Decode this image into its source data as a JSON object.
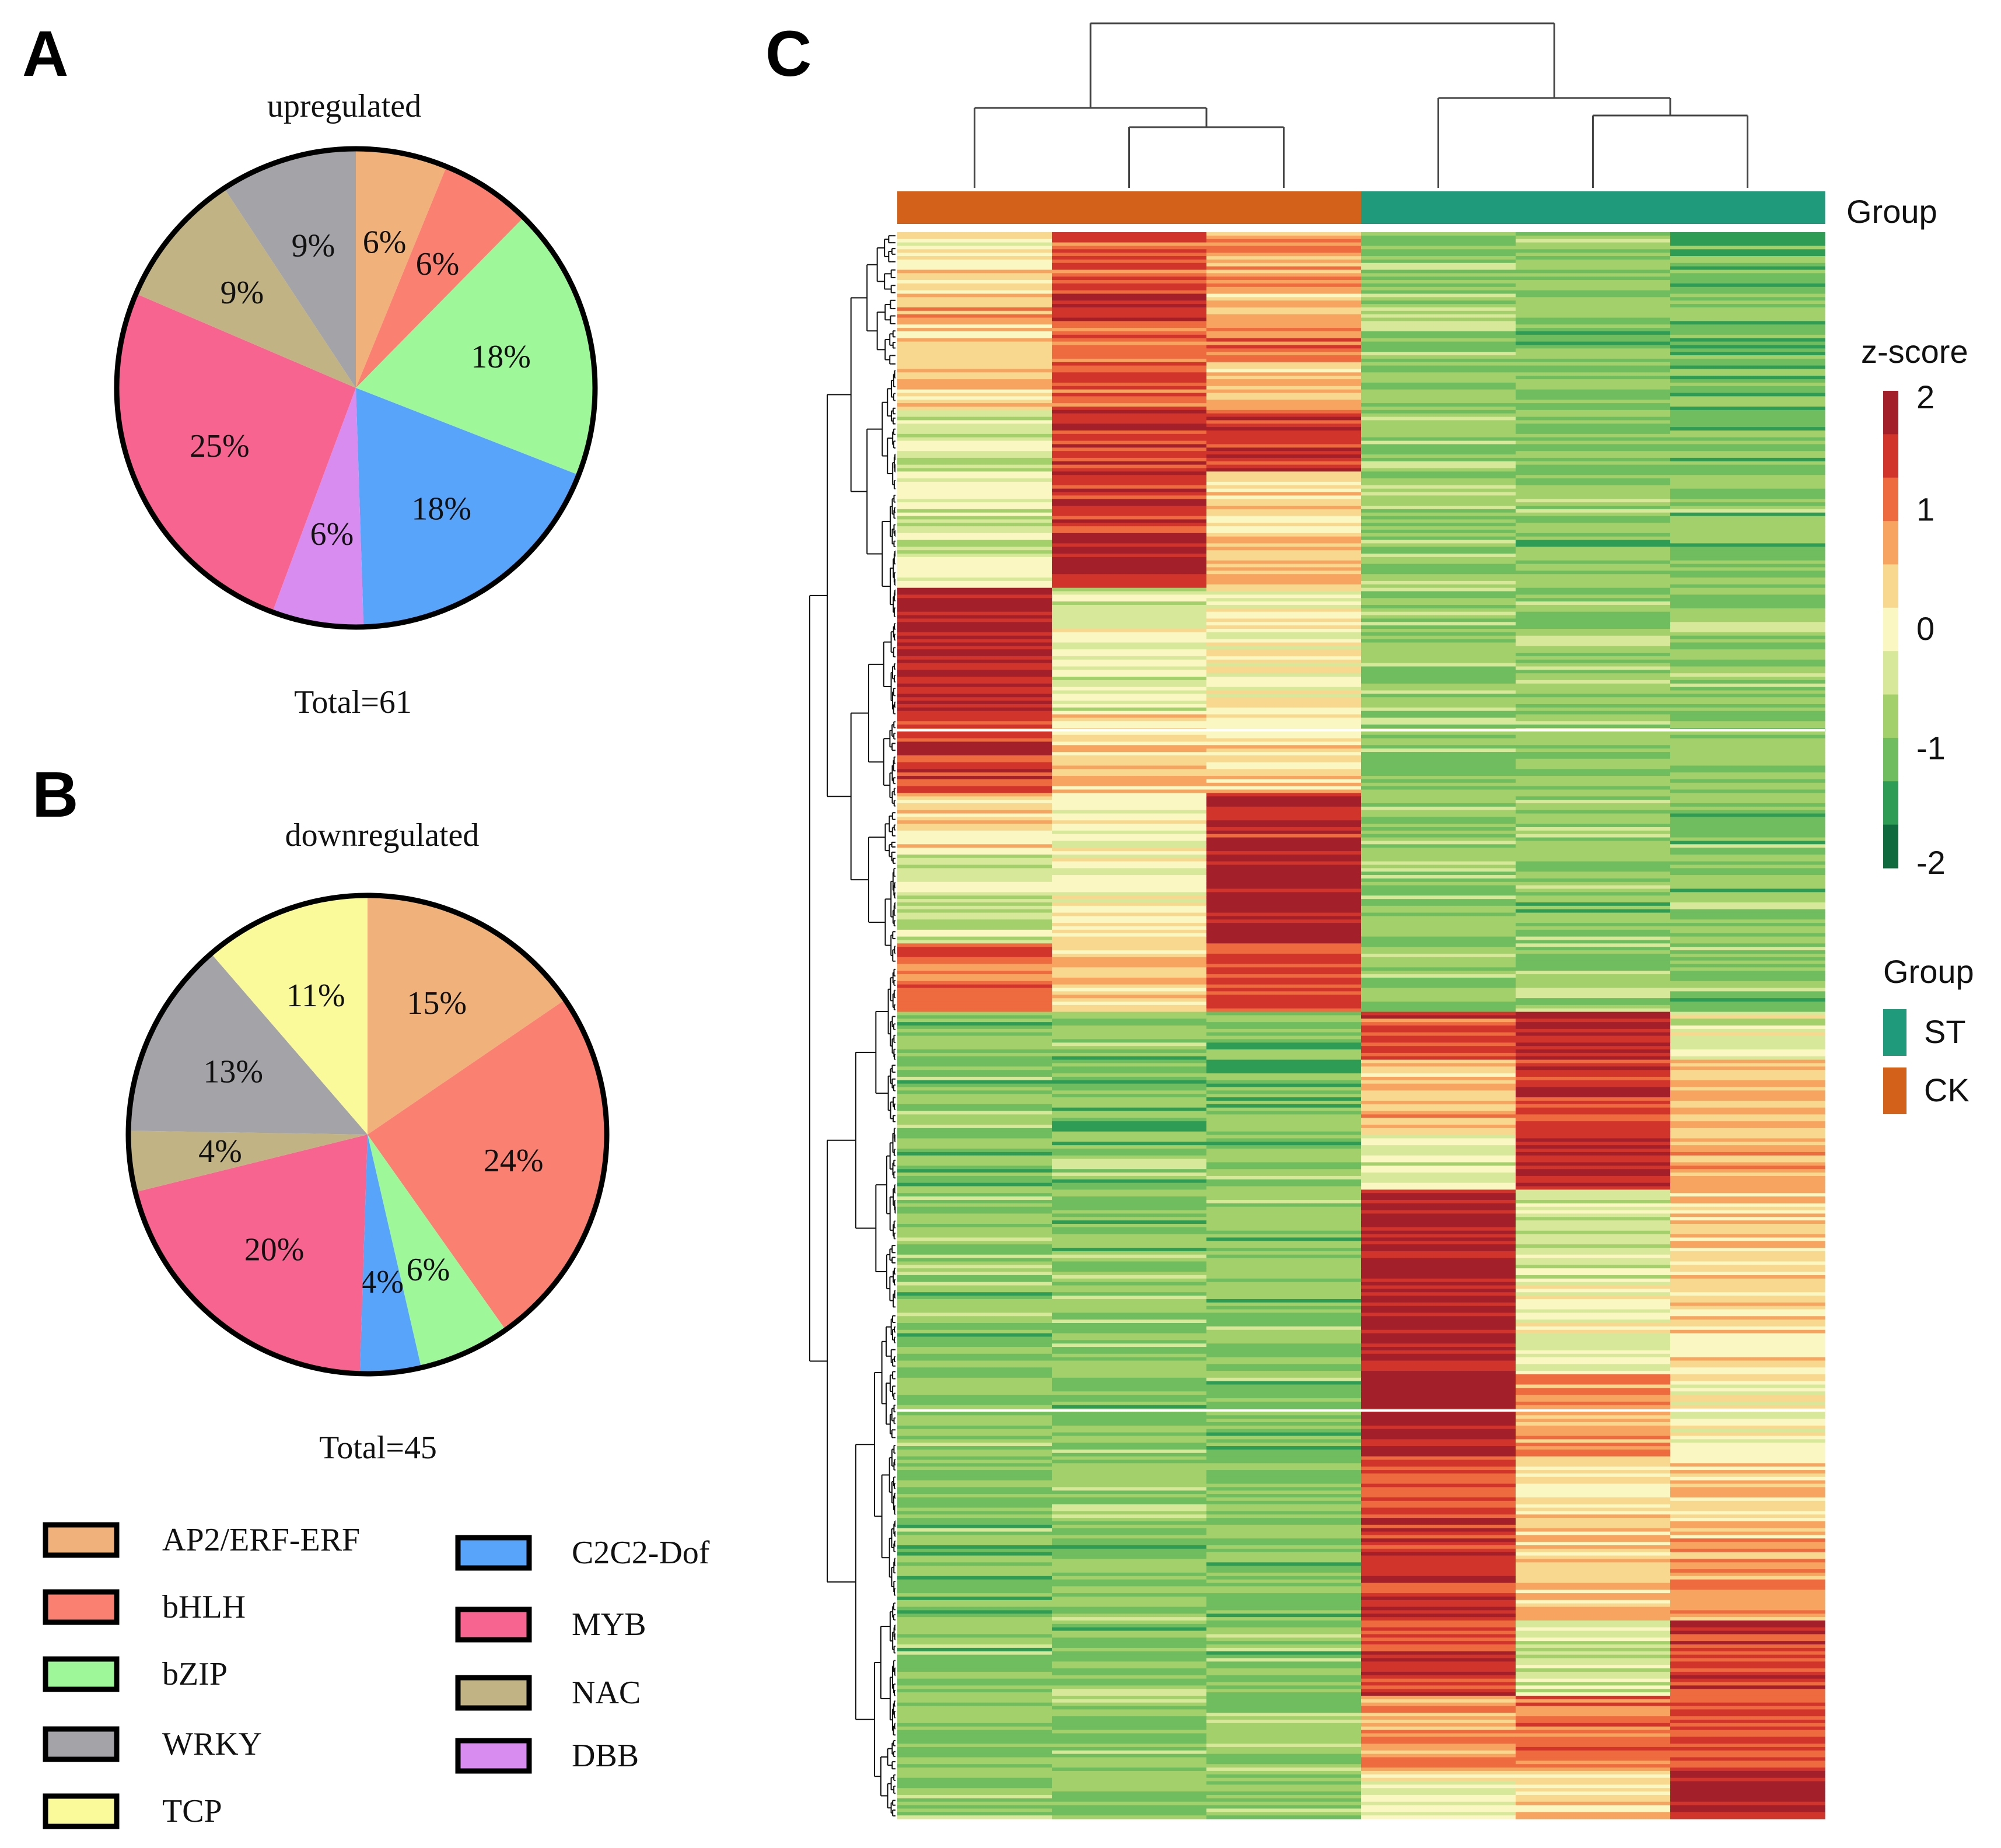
{
  "panels": {
    "a": "A",
    "b": "B",
    "c": "C"
  },
  "chart_data": [
    {
      "type": "pie",
      "title": "upregulated",
      "total_label": "Total=61",
      "slices": [
        {
          "name": "AP2/ERF-ERF",
          "value": 6,
          "label": "6%",
          "color": "#f0b27a"
        },
        {
          "name": "bHLH",
          "value": 6,
          "label": "6%",
          "color": "#fa8072"
        },
        {
          "name": "bZIP",
          "value": 18,
          "label": "18%",
          "color": "#9ef89a"
        },
        {
          "name": "C2C2-Dof",
          "value": 18,
          "label": "18%",
          "color": "#58a4fa"
        },
        {
          "name": "DBB",
          "value": 6,
          "label": "6%",
          "color": "#d98cf0"
        },
        {
          "name": "MYB",
          "value": 25,
          "label": "25%",
          "color": "#f7648f"
        },
        {
          "name": "NAC",
          "value": 9,
          "label": "9%",
          "color": "#c1b383"
        },
        {
          "name": "WRKY",
          "value": 9,
          "label": "9%",
          "color": "#a3a3a8"
        }
      ]
    },
    {
      "type": "pie",
      "title": "downregulated",
      "total_label": "Total=45",
      "slices": [
        {
          "name": "AP2/ERF-ERF",
          "value": 15,
          "label": "15%",
          "color": "#f0b27a"
        },
        {
          "name": "bHLH",
          "value": 24,
          "label": "24%",
          "color": "#fa8072"
        },
        {
          "name": "bZIP",
          "value": 6,
          "label": "6%",
          "color": "#9ef89a"
        },
        {
          "name": "C2C2-Dof",
          "value": 4,
          "label": "4%",
          "color": "#58a4fa"
        },
        {
          "name": "MYB",
          "value": 20,
          "label": "20%",
          "color": "#f7648f"
        },
        {
          "name": "NAC",
          "value": 4,
          "label": "4%",
          "color": "#c1b383"
        },
        {
          "name": "WRKY",
          "value": 13,
          "label": "13%",
          "color": "#a3a3a8"
        },
        {
          "name": "TCP",
          "value": 11,
          "label": "11%",
          "color": "#fafa9a"
        }
      ]
    },
    {
      "type": "heatmap",
      "group_annotation_title": "Group",
      "colorbar": {
        "title": "z-score",
        "range": [
          -2,
          2
        ],
        "ticks": [
          "2",
          "1",
          "0",
          "-1",
          "-2"
        ],
        "colors": [
          "#a3202a",
          "#d0342a",
          "#ee6a3f",
          "#f6a460",
          "#f8d88e",
          "#fbf7c2",
          "#d8e89a",
          "#a3d06a",
          "#6fbd5f",
          "#2f9c55",
          "#0f6b3e"
        ]
      },
      "groups": [
        {
          "name": "ST",
          "color": "#1f9a7a"
        },
        {
          "name": "CK",
          "color": "#d4611a"
        }
      ],
      "columns": [
        {
          "group": "CK"
        },
        {
          "group": "CK"
        },
        {
          "group": "CK"
        },
        {
          "group": "ST"
        },
        {
          "group": "ST"
        },
        {
          "group": "ST"
        }
      ],
      "row_blocks": [
        {
          "rows": 18,
          "z": [
            0.2,
            1.2,
            0.8,
            -0.9,
            -1.0,
            -1.1
          ]
        },
        {
          "rows": 8,
          "z": [
            0.6,
            2.0,
            0.4,
            -0.9,
            -1.0,
            -1.0
          ]
        },
        {
          "rows": 12,
          "z": [
            0.5,
            1.1,
            1.0,
            -0.8,
            -1.1,
            -1.2
          ]
        },
        {
          "rows": 14,
          "z": [
            0.5,
            1.3,
            0.5,
            -1.0,
            -1.0,
            -1.2
          ]
        },
        {
          "rows": 18,
          "z": [
            -0.4,
            1.6,
            1.6,
            -0.9,
            -1.0,
            -1.1
          ]
        },
        {
          "rows": 20,
          "z": [
            -0.2,
            1.5,
            0.4,
            -0.9,
            -1.0,
            -1.0
          ]
        },
        {
          "rows": 14,
          "z": [
            -0.4,
            1.8,
            0.6,
            -0.9,
            -1.0,
            -1.1
          ]
        },
        {
          "rows": 36,
          "z": [
            1.9,
            -0.2,
            0.1,
            -0.8,
            -0.9,
            -0.9
          ]
        },
        {
          "rows": 24,
          "z": [
            1.6,
            0.4,
            0.3,
            -0.9,
            -0.9,
            -1.0
          ]
        },
        {
          "rows": 18,
          "z": [
            0.3,
            0.1,
            1.8,
            -0.9,
            -0.9,
            -1.0
          ]
        },
        {
          "rows": 26,
          "z": [
            -0.5,
            0.0,
            2.0,
            -0.9,
            -1.0,
            -1.0
          ]
        },
        {
          "rows": 20,
          "z": [
            1.2,
            0.5,
            1.3,
            -0.9,
            -0.9,
            -1.0
          ]
        },
        {
          "rows": 14,
          "z": [
            -1.0,
            -1.0,
            -1.0,
            1.4,
            1.7,
            -0.2
          ]
        },
        {
          "rows": 22,
          "z": [
            -1.0,
            -1.1,
            -1.1,
            0.6,
            1.6,
            0.6
          ]
        },
        {
          "rows": 16,
          "z": [
            -1.1,
            -1.0,
            -1.0,
            -0.2,
            2.0,
            0.7
          ]
        },
        {
          "rows": 28,
          "z": [
            -0.9,
            -1.0,
            -1.0,
            2.0,
            -0.4,
            0.4
          ]
        },
        {
          "rows": 26,
          "z": [
            -1.0,
            -0.9,
            -1.0,
            1.9,
            -0.1,
            0.3
          ]
        },
        {
          "rows": 24,
          "z": [
            -1.0,
            -1.0,
            -1.0,
            2.0,
            0.9,
            -0.1
          ]
        },
        {
          "rows": 24,
          "z": [
            -1.0,
            -0.9,
            -1.0,
            1.5,
            0.3,
            0.4
          ]
        },
        {
          "rows": 24,
          "z": [
            -1.2,
            -1.0,
            -1.0,
            1.6,
            0.4,
            0.9
          ]
        },
        {
          "rows": 22,
          "z": [
            -1.0,
            -1.0,
            -1.0,
            1.6,
            -0.4,
            1.6
          ]
        },
        {
          "rows": 22,
          "z": [
            -1.0,
            -0.9,
            -0.9,
            0.8,
            1.2,
            1.4
          ]
        },
        {
          "rows": 14,
          "z": [
            -0.9,
            -0.9,
            -0.9,
            -0.1,
            0.4,
            2.0
          ]
        }
      ]
    }
  ],
  "legend_items": [
    {
      "name": "AP2/ERF-ERF",
      "color": "#f0b27a"
    },
    {
      "name": "bHLH",
      "color": "#fa8072"
    },
    {
      "name": "bZIP",
      "color": "#9ef89a"
    },
    {
      "name": "WRKY",
      "color": "#a3a3a8"
    },
    {
      "name": "TCP",
      "color": "#fafa9a"
    },
    {
      "name": "C2C2-Dof",
      "color": "#58a4fa"
    },
    {
      "name": "MYB",
      "color": "#f7648f"
    },
    {
      "name": "NAC",
      "color": "#c1b383"
    },
    {
      "name": "DBB",
      "color": "#d98cf0"
    }
  ]
}
